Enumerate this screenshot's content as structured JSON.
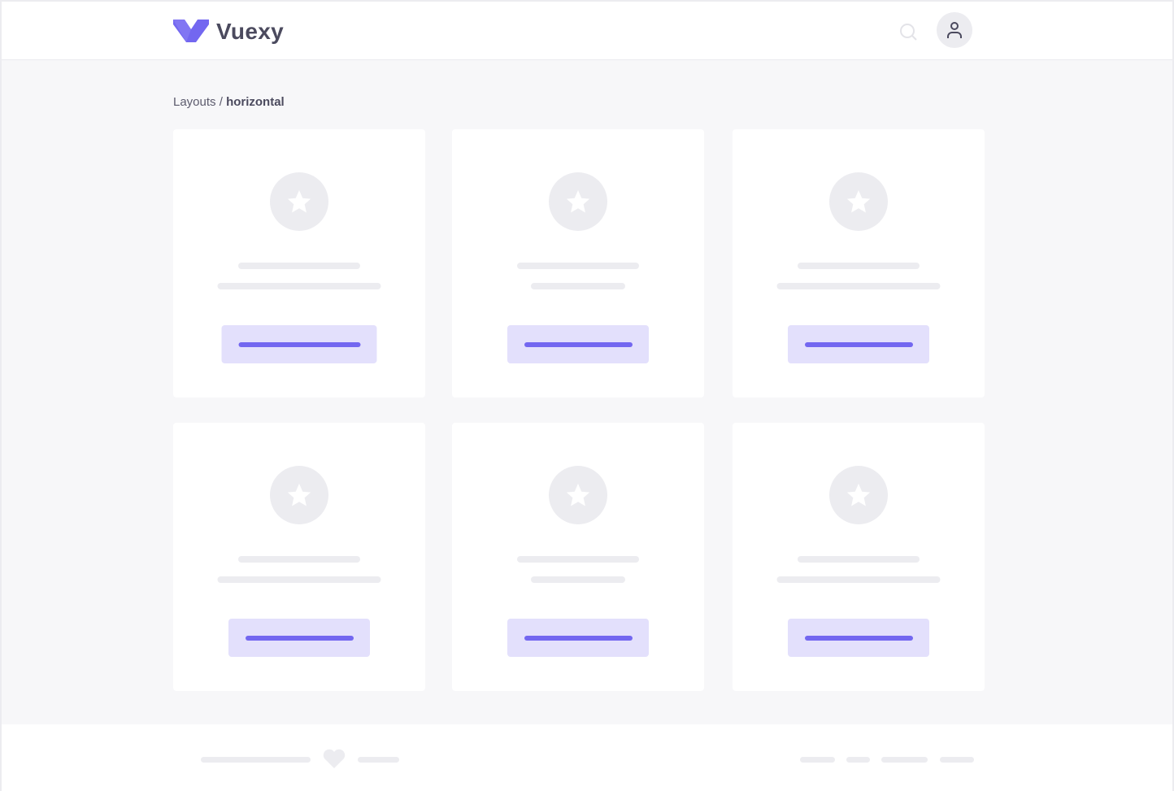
{
  "header": {
    "brand": "Vuexy",
    "brand_color": "#7367f0",
    "icons": [
      "search-icon",
      "user-icon"
    ]
  },
  "breadcrumb": {
    "parent": "Layouts",
    "separator": " / ",
    "current": "horizontal"
  },
  "cards": [
    {
      "icon": "star-icon"
    },
    {
      "icon": "star-icon"
    },
    {
      "icon": "star-icon"
    },
    {
      "icon": "star-icon"
    },
    {
      "icon": "star-icon"
    },
    {
      "icon": "star-icon"
    }
  ],
  "footer": {
    "icon": "heart-icon"
  }
}
